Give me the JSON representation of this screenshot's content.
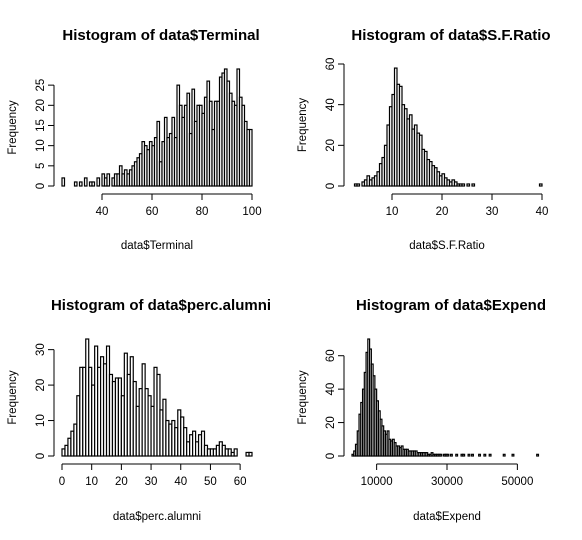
{
  "chart_data": [
    {
      "type": "bar",
      "subtype": "histogram",
      "title": "Histogram of data$Terminal",
      "xlabel": "data$Terminal",
      "ylabel": "Frequency",
      "xticks": [
        40,
        60,
        80,
        100
      ],
      "yticks": [
        0,
        5,
        10,
        15,
        20,
        25
      ],
      "xlim": [
        24,
        100
      ],
      "ylim": [
        0,
        29
      ],
      "bin_start": 24,
      "bin_width": 1,
      "counts": [
        2,
        0,
        0,
        0,
        0,
        1,
        0,
        1,
        0,
        2,
        0,
        1,
        1,
        0,
        2,
        0,
        3,
        2,
        3,
        0,
        2,
        3,
        3,
        5,
        3,
        4,
        3,
        4,
        5,
        6,
        7,
        8,
        11,
        10,
        9,
        11,
        10,
        12,
        16,
        6,
        11,
        17,
        12,
        13,
        17,
        12,
        25,
        20,
        17,
        20,
        23,
        13,
        24,
        16,
        20,
        20,
        18,
        22,
        26,
        21,
        14,
        21,
        21,
        27,
        28,
        29,
        26,
        23,
        21,
        20,
        29,
        22,
        20,
        16,
        14,
        14
      ]
    },
    {
      "type": "bar",
      "subtype": "histogram",
      "title": "Histogram of data$S.F.Ratio",
      "xlabel": "data$S.F.Ratio",
      "ylabel": "Frequency",
      "xticks": [
        10,
        20,
        30,
        40
      ],
      "yticks": [
        0,
        20,
        40,
        60
      ],
      "xlim": [
        2,
        40
      ],
      "ylim": [
        0,
        60
      ],
      "bin_start": 2.5,
      "bin_width": 0.5,
      "counts": [
        1,
        1,
        0,
        2,
        3,
        5,
        3,
        4,
        5,
        7,
        11,
        14,
        20,
        30,
        39,
        45,
        58,
        50,
        49,
        40,
        38,
        33,
        35,
        28,
        30,
        26,
        25,
        18,
        17,
        13,
        12,
        10,
        9,
        7,
        5,
        6,
        4,
        3,
        2,
        3,
        2,
        1,
        1,
        1,
        0,
        1,
        0,
        1,
        0,
        0,
        0,
        0,
        0,
        0,
        0,
        0,
        0,
        0,
        0,
        0,
        0,
        0,
        0,
        0,
        0,
        0,
        0,
        0,
        0,
        0,
        0,
        0,
        0,
        0,
        1
      ]
    },
    {
      "type": "bar",
      "subtype": "histogram",
      "title": "Histogram of data$perc.alumni",
      "xlabel": "data$perc.alumni",
      "ylabel": "Frequency",
      "xticks": [
        0,
        10,
        20,
        30,
        40,
        50,
        60
      ],
      "yticks": [
        0,
        10,
        20,
        30
      ],
      "xlim": [
        0,
        64
      ],
      "ylim": [
        0,
        33
      ],
      "bin_start": 0,
      "bin_width": 1,
      "counts": [
        2,
        3,
        5,
        7,
        9,
        17,
        25,
        25,
        33,
        25,
        20,
        31,
        25,
        28,
        26,
        31,
        23,
        21,
        22,
        22,
        17,
        29,
        23,
        28,
        21,
        14,
        19,
        26,
        19,
        17,
        14,
        25,
        23,
        13,
        16,
        10,
        9,
        10,
        8,
        13,
        11,
        8,
        4,
        6,
        7,
        4,
        6,
        7,
        3,
        2,
        2,
        2,
        3,
        4,
        3,
        2,
        2,
        1,
        2,
        0,
        0,
        0,
        1,
        1
      ]
    },
    {
      "type": "bar",
      "subtype": "histogram",
      "title": "Histogram of data$Expend",
      "xlabel": "data$Expend",
      "ylabel": "Frequency",
      "xticks": [
        10000,
        30000,
        50000
      ],
      "xtick_labels": [
        "10000",
        "30000",
        "50000"
      ],
      "yticks": [
        0,
        20,
        40,
        60
      ],
      "xlim": [
        3000,
        57000
      ],
      "ylim": [
        0,
        70
      ],
      "bin_start": 3000,
      "bin_width": 500,
      "counts": [
        1,
        3,
        7,
        15,
        25,
        32,
        40,
        50,
        62,
        70,
        64,
        55,
        48,
        40,
        33,
        27,
        22,
        18,
        15,
        13,
        15,
        10,
        9,
        10,
        8,
        6,
        6,
        5,
        6,
        4,
        4,
        4,
        3,
        3,
        3,
        3,
        3,
        2,
        2,
        2,
        2,
        2,
        2,
        1,
        1,
        2,
        1,
        1,
        1,
        1,
        1,
        0,
        1,
        1,
        1,
        0,
        1,
        0,
        0,
        1,
        0,
        0,
        1,
        1,
        0,
        0,
        1,
        0,
        1,
        0,
        0,
        0,
        1,
        0,
        0,
        1,
        0,
        0,
        1,
        0,
        0,
        0,
        0,
        0,
        0,
        0,
        1,
        0,
        0,
        0,
        0,
        1,
        0,
        0,
        0,
        0,
        0,
        0,
        0,
        0,
        0,
        0,
        0,
        0,
        0,
        1
      ]
    }
  ]
}
